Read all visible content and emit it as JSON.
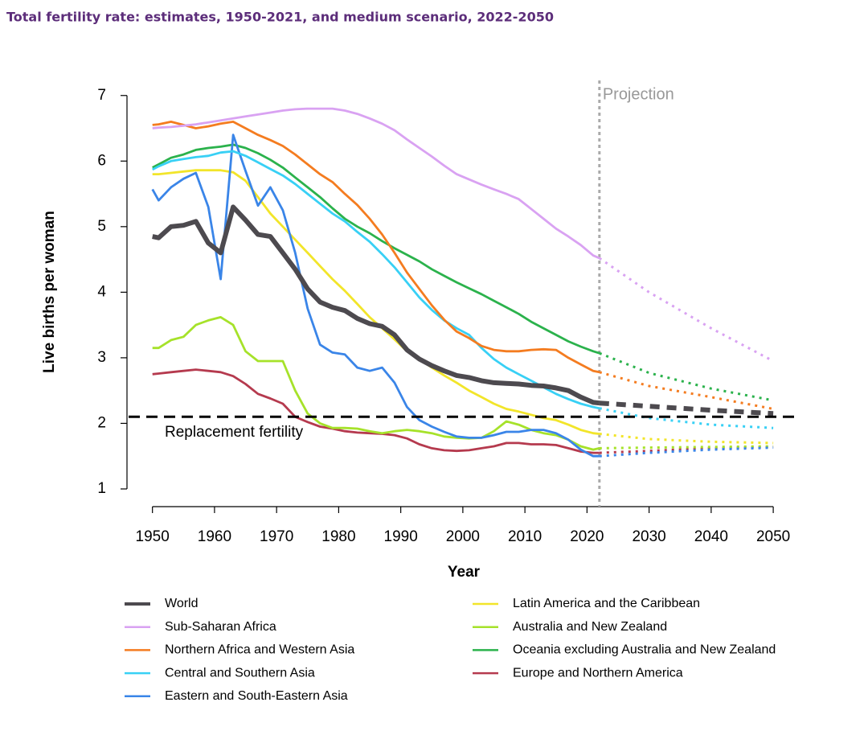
{
  "chart_data": {
    "type": "line",
    "title": "Total fertility rate: estimates, 1950-2021, and medium scenario, 2022-2050",
    "x_label": "Year",
    "y_label": "Live births per woman",
    "x": [
      1950,
      1951,
      1953,
      1955,
      1957,
      1959,
      1961,
      1963,
      1965,
      1967,
      1969,
      1971,
      1973,
      1975,
      1977,
      1979,
      1981,
      1983,
      1985,
      1987,
      1989,
      1991,
      1993,
      1995,
      1997,
      1999,
      2001,
      2003,
      2005,
      2007,
      2009,
      2011,
      2013,
      2015,
      2017,
      2019,
      2021,
      2022
    ],
    "projection_x": [
      2022,
      2030,
      2040,
      2050
    ],
    "xlim": [
      1945.9,
      2054
    ],
    "xticks": [
      1950,
      1960,
      1970,
      1980,
      1990,
      2000,
      2010,
      2020,
      2030,
      2040,
      2050
    ],
    "ylim": [
      0.73,
      7.23
    ],
    "yticks": [
      1,
      2,
      3,
      4,
      5,
      6,
      7
    ],
    "annotations": {
      "projection": {
        "text": "Projection",
        "x": 2022
      },
      "replacement": {
        "text": "Replacement fertility",
        "y": 2.1
      }
    },
    "series": [
      {
        "name": "World",
        "color": "#4d4a4f",
        "values": [
          4.85,
          4.83,
          5.0,
          5.02,
          5.08,
          4.75,
          4.6,
          5.3,
          5.1,
          4.88,
          4.85,
          4.6,
          4.35,
          4.05,
          3.85,
          3.77,
          3.72,
          3.6,
          3.52,
          3.48,
          3.35,
          3.12,
          2.98,
          2.88,
          2.8,
          2.73,
          2.7,
          2.65,
          2.62,
          2.61,
          2.6,
          2.58,
          2.57,
          2.54,
          2.5,
          2.4,
          2.32,
          2.31
        ],
        "projection": [
          2.31,
          2.26,
          2.2,
          2.15
        ]
      },
      {
        "name": "Sub-Saharan Africa",
        "color": "#d9a2f2",
        "values": [
          6.5,
          6.51,
          6.52,
          6.54,
          6.56,
          6.59,
          6.62,
          6.65,
          6.68,
          6.71,
          6.74,
          6.77,
          6.79,
          6.8,
          6.8,
          6.8,
          6.77,
          6.72,
          6.65,
          6.57,
          6.47,
          6.33,
          6.2,
          6.07,
          5.93,
          5.8,
          5.72,
          5.64,
          5.57,
          5.5,
          5.42,
          5.27,
          5.12,
          4.97,
          4.85,
          4.72,
          4.56,
          4.52
        ],
        "projection": [
          4.52,
          4.0,
          3.45,
          2.95
        ]
      },
      {
        "name": "Northern Africa and Western Asia",
        "color": "#f47c20",
        "values": [
          6.55,
          6.56,
          6.6,
          6.55,
          6.5,
          6.53,
          6.57,
          6.6,
          6.5,
          6.4,
          6.32,
          6.23,
          6.1,
          5.95,
          5.8,
          5.68,
          5.5,
          5.33,
          5.12,
          4.88,
          4.6,
          4.3,
          4.05,
          3.8,
          3.58,
          3.4,
          3.3,
          3.18,
          3.12,
          3.1,
          3.1,
          3.12,
          3.13,
          3.12,
          3.0,
          2.9,
          2.8,
          2.78
        ],
        "projection": [
          2.78,
          2.57,
          2.4,
          2.22
        ]
      },
      {
        "name": "Central and Southern Asia",
        "color": "#38d0f5",
        "values": [
          5.87,
          5.92,
          6.0,
          6.03,
          6.06,
          6.08,
          6.13,
          6.15,
          6.08,
          5.98,
          5.88,
          5.78,
          5.65,
          5.5,
          5.35,
          5.2,
          5.08,
          4.92,
          4.77,
          4.58,
          4.38,
          4.15,
          3.92,
          3.73,
          3.57,
          3.45,
          3.35,
          3.15,
          2.98,
          2.85,
          2.75,
          2.65,
          2.55,
          2.45,
          2.37,
          2.3,
          2.25,
          2.23
        ],
        "projection": [
          2.23,
          2.08,
          1.98,
          1.93
        ]
      },
      {
        "name": "Eastern and South-Eastern Asia",
        "color": "#3a85e8",
        "values": [
          5.57,
          5.4,
          5.6,
          5.73,
          5.82,
          5.3,
          4.2,
          6.4,
          5.85,
          5.32,
          5.6,
          5.25,
          4.6,
          3.75,
          3.2,
          3.08,
          3.05,
          2.85,
          2.8,
          2.85,
          2.62,
          2.25,
          2.05,
          1.95,
          1.87,
          1.8,
          1.78,
          1.78,
          1.82,
          1.87,
          1.87,
          1.9,
          1.9,
          1.85,
          1.75,
          1.6,
          1.5,
          1.5
        ],
        "projection": [
          1.5,
          1.55,
          1.6,
          1.63
        ]
      },
      {
        "name": "Latin America and the Caribbean",
        "color": "#f2e52a",
        "values": [
          5.8,
          5.8,
          5.82,
          5.84,
          5.86,
          5.86,
          5.86,
          5.83,
          5.7,
          5.45,
          5.2,
          5.0,
          4.8,
          4.6,
          4.4,
          4.2,
          4.02,
          3.82,
          3.62,
          3.45,
          3.28,
          3.1,
          2.98,
          2.85,
          2.73,
          2.62,
          2.5,
          2.4,
          2.3,
          2.22,
          2.18,
          2.13,
          2.08,
          2.05,
          1.98,
          1.9,
          1.85,
          1.84
        ],
        "projection": [
          1.84,
          1.76,
          1.72,
          1.7
        ]
      },
      {
        "name": "Australia and New Zealand",
        "color": "#a6e22a",
        "values": [
          3.15,
          3.15,
          3.27,
          3.32,
          3.5,
          3.57,
          3.62,
          3.5,
          3.1,
          2.95,
          2.95,
          2.95,
          2.5,
          2.15,
          2.0,
          1.93,
          1.93,
          1.92,
          1.88,
          1.85,
          1.88,
          1.9,
          1.88,
          1.85,
          1.8,
          1.78,
          1.77,
          1.78,
          1.88,
          2.03,
          1.98,
          1.9,
          1.85,
          1.82,
          1.75,
          1.65,
          1.6,
          1.62
        ],
        "projection": [
          1.62,
          1.63,
          1.64,
          1.65
        ]
      },
      {
        "name": "Oceania excluding Australia and New Zealand",
        "color": "#2bb24c",
        "values": [
          5.9,
          5.95,
          6.05,
          6.1,
          6.17,
          6.2,
          6.22,
          6.25,
          6.2,
          6.12,
          6.02,
          5.9,
          5.75,
          5.6,
          5.45,
          5.28,
          5.12,
          5.0,
          4.9,
          4.78,
          4.67,
          4.57,
          4.47,
          4.35,
          4.25,
          4.15,
          4.06,
          3.97,
          3.87,
          3.77,
          3.67,
          3.55,
          3.45,
          3.35,
          3.25,
          3.17,
          3.1,
          3.07
        ],
        "projection": [
          3.07,
          2.77,
          2.53,
          2.35
        ]
      },
      {
        "name": "Europe and Northern America",
        "color": "#b53a4e",
        "values": [
          2.75,
          2.76,
          2.78,
          2.8,
          2.82,
          2.8,
          2.78,
          2.72,
          2.6,
          2.45,
          2.38,
          2.3,
          2.1,
          2.02,
          1.95,
          1.92,
          1.88,
          1.86,
          1.85,
          1.84,
          1.82,
          1.77,
          1.68,
          1.62,
          1.59,
          1.58,
          1.59,
          1.62,
          1.65,
          1.7,
          1.7,
          1.68,
          1.68,
          1.67,
          1.62,
          1.57,
          1.55,
          1.55
        ],
        "projection": [
          1.55,
          1.58,
          1.62,
          1.64
        ]
      }
    ]
  }
}
